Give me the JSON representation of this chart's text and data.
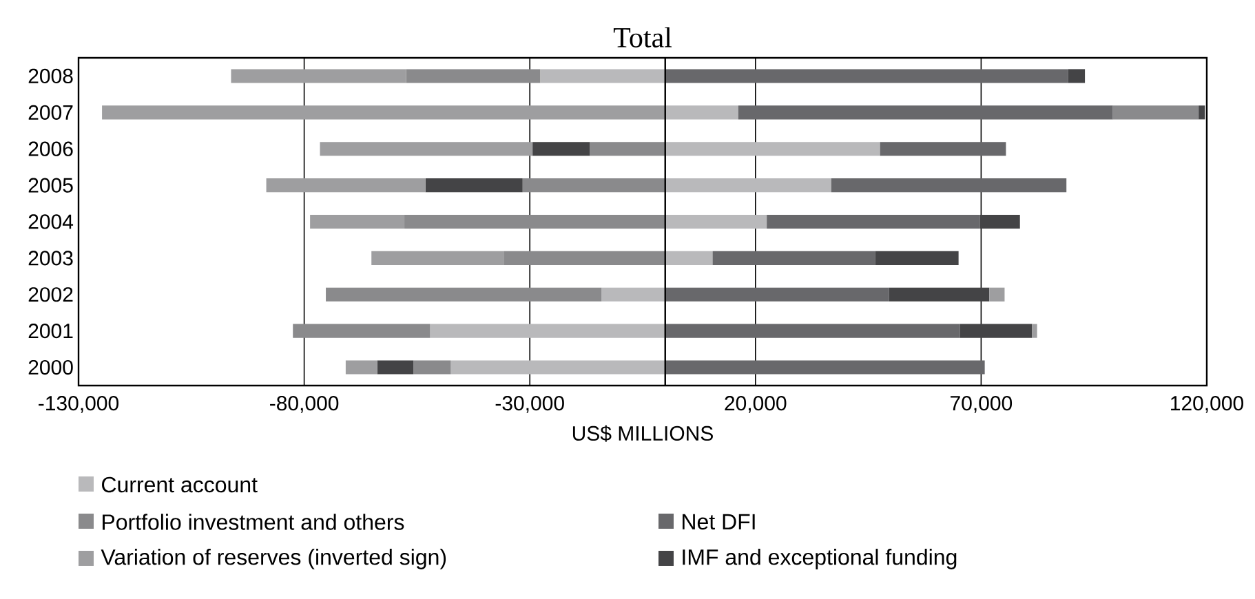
{
  "chart_data": {
    "type": "bar",
    "orientation": "horizontal",
    "stacked": true,
    "title": "Total",
    "xlabel": "US$ MILLIONS",
    "categories": [
      "2008",
      "2007",
      "2006",
      "2005",
      "2004",
      "2003",
      "2002",
      "2001",
      "2000"
    ],
    "series": [
      {
        "name": "Current account",
        "color": "#b9b9bb",
        "values": [
          -27700,
          16200,
          47600,
          36800,
          22500,
          10500,
          -14100,
          -52100,
          -47500
        ]
      },
      {
        "name": "Net DFI",
        "color": "#68686b",
        "values": [
          89300,
          83000,
          27900,
          52100,
          47200,
          36000,
          49600,
          65300,
          70800
        ]
      },
      {
        "name": "Portfolio investment and others",
        "color": "#8a8a8c",
        "values": [
          -29700,
          19000,
          -16700,
          -31600,
          -57800,
          -35800,
          -61100,
          -30400,
          -8300
        ]
      },
      {
        "name": "IMF and exceptional funding",
        "color": "#444446",
        "values": [
          3700,
          1400,
          -12700,
          -21500,
          8900,
          18500,
          22200,
          16000,
          -8000
        ]
      },
      {
        "name": "Variation of reserves (inverted sign)",
        "color": "#9e9ea0",
        "values": [
          -38800,
          -124800,
          -47100,
          -35300,
          -20900,
          -29300,
          3400,
          1100,
          -7000
        ]
      }
    ],
    "xlim": [
      -130000,
      120000
    ],
    "xticks": [
      {
        "value": -130000,
        "label": "-130,000"
      },
      {
        "value": -80000,
        "label": "-80,000"
      },
      {
        "value": -30000,
        "label": "-30,000"
      },
      {
        "value": 20000,
        "label": "20,000"
      },
      {
        "value": 70000,
        "label": "70,000"
      },
      {
        "value": 120000,
        "label": "120,000"
      }
    ],
    "grid": "x",
    "legend": "bottom"
  }
}
